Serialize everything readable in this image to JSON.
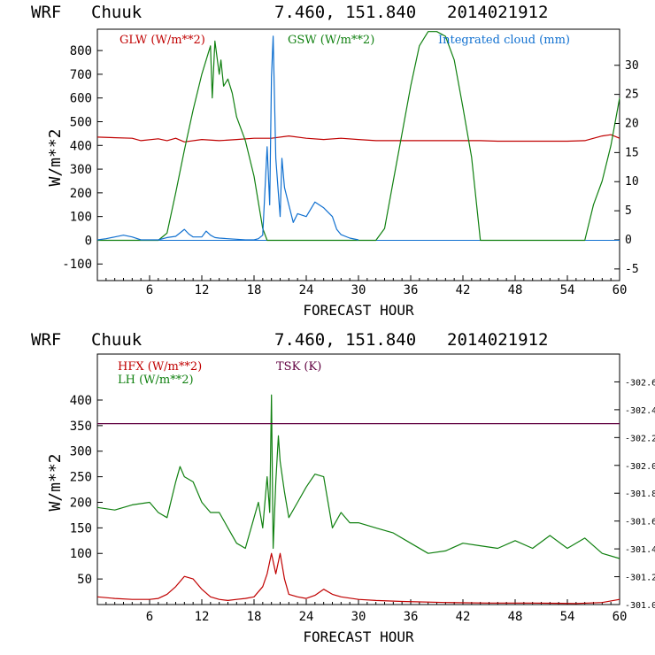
{
  "chart_data": [
    {
      "type": "line",
      "header": {
        "model": "WRF",
        "station": "Chuuk",
        "coords": "7.460, 151.840",
        "run": "2014021912"
      },
      "xlabel": "FORECAST HOUR",
      "ylabel": "W/m**2",
      "xlim": [
        0,
        60
      ],
      "ylim": [
        -170,
        890
      ],
      "xticks": [
        "6",
        "12",
        "18",
        "24",
        "30",
        "36",
        "42",
        "48",
        "54",
        "60"
      ],
      "yticks": [
        "-100",
        "0",
        "100",
        "200",
        "300",
        "400",
        "500",
        "600",
        "700",
        "800"
      ],
      "y2lim": [
        -7,
        36.2
      ],
      "y2ticks": [
        "-5",
        "0",
        "5",
        "10",
        "15",
        "20",
        "25",
        "30"
      ],
      "colors": {
        "glw": "#c00000",
        "gsw": "#108010",
        "cloud": "#1070d0"
      },
      "series": [
        {
          "name": "GLW (W/m**2)",
          "key": "glw",
          "axis": "left",
          "x": [
            0,
            4,
            5,
            7,
            8,
            9,
            10,
            12,
            14,
            16,
            18,
            20,
            22,
            24,
            26,
            28,
            30,
            32,
            34,
            36,
            38,
            40,
            42,
            44,
            46,
            48,
            50,
            52,
            54,
            56,
            58,
            59,
            60
          ],
          "y": [
            435,
            430,
            420,
            428,
            420,
            430,
            415,
            425,
            420,
            425,
            430,
            430,
            440,
            430,
            425,
            430,
            425,
            420,
            420,
            420,
            420,
            420,
            420,
            420,
            418,
            418,
            418,
            418,
            418,
            420,
            440,
            445,
            430
          ]
        },
        {
          "name": "GSW (W/m**2)",
          "key": "gsw",
          "axis": "left",
          "x": [
            0,
            7,
            8,
            9,
            10,
            11,
            12,
            13,
            13.2,
            13.5,
            14,
            14.2,
            14.5,
            15,
            15.5,
            16,
            17,
            18,
            19,
            19.5,
            20,
            32,
            33,
            34,
            35,
            36,
            37,
            38,
            39,
            40,
            41,
            42,
            43,
            44,
            56,
            57,
            58,
            59,
            60
          ],
          "y": [
            0,
            0,
            30,
            200,
            380,
            550,
            700,
            820,
            600,
            840,
            700,
            760,
            650,
            680,
            620,
            520,
            420,
            270,
            50,
            0,
            0,
            0,
            50,
            250,
            450,
            650,
            820,
            880,
            880,
            860,
            760,
            560,
            350,
            0,
            0,
            150,
            250,
            400,
            600
          ]
        },
        {
          "name": "Integrated cloud (mm)",
          "key": "cloud",
          "axis": "right",
          "x": [
            0,
            1,
            2,
            3,
            4,
            5,
            6,
            7,
            8,
            9,
            9.5,
            10,
            10.5,
            11,
            12,
            12.5,
            13,
            13.5,
            14,
            15,
            16,
            17,
            18,
            18.5,
            19,
            19.5,
            19.8,
            20,
            20.2,
            20.5,
            20.8,
            21,
            21.2,
            21.5,
            22,
            22.5,
            23,
            24,
            25,
            26,
            27,
            27.5,
            28,
            29,
            30
          ],
          "y": [
            0,
            0.2,
            0.5,
            0.8,
            0.5,
            0,
            0,
            0,
            0.4,
            0.6,
            1.2,
            1.8,
            1,
            0.5,
            0.5,
            1.5,
            0.8,
            0.4,
            0.3,
            0.2,
            0.1,
            0,
            0,
            0.2,
            0.8,
            16,
            6,
            28,
            35,
            14,
            8,
            4,
            14,
            9,
            6,
            3,
            4.5,
            4,
            6.5,
            5.5,
            4,
            1.8,
            0.9,
            0.3,
            0
          ]
        }
      ]
    },
    {
      "type": "line",
      "header": {
        "model": "WRF",
        "station": "Chuuk",
        "coords": "7.460, 151.840",
        "run": "2014021912"
      },
      "xlabel": "FORECAST HOUR",
      "ylabel": "W/m**2",
      "xlim": [
        0,
        60
      ],
      "ylim": [
        0,
        490
      ],
      "xticks": [
        "6",
        "12",
        "18",
        "24",
        "30",
        "36",
        "42",
        "48",
        "54",
        "60"
      ],
      "yticks": [
        "50",
        "100",
        "150",
        "200",
        "250",
        "300",
        "350",
        "400"
      ],
      "y2lim": [
        301.0,
        302.8
      ],
      "y2ticks": [
        "301.0",
        "301.2",
        "301.4",
        "301.6",
        "301.8",
        "302.0",
        "302.2",
        "302.4",
        "302.6"
      ],
      "colors": {
        "hfx": "#c00000",
        "lh": "#108010",
        "tsk": "#600040"
      },
      "series": [
        {
          "name": "HFX (W/m**2)",
          "key": "hfx",
          "axis": "left",
          "x": [
            0,
            2,
            4,
            6,
            7,
            8,
            9,
            10,
            11,
            12,
            13,
            14,
            15,
            16,
            17,
            18,
            19,
            19.5,
            20,
            20.5,
            21,
            21.5,
            22,
            23,
            24,
            25,
            26,
            27,
            28,
            30,
            32,
            35,
            40,
            45,
            50,
            55,
            58,
            60
          ],
          "y": [
            15,
            12,
            10,
            10,
            12,
            20,
            35,
            55,
            50,
            30,
            15,
            10,
            8,
            10,
            12,
            15,
            35,
            60,
            100,
            60,
            100,
            50,
            20,
            15,
            12,
            18,
            30,
            20,
            15,
            10,
            8,
            6,
            4,
            3,
            3,
            2,
            4,
            10
          ]
        },
        {
          "name": "LH (W/m**2)",
          "key": "lh",
          "axis": "left",
          "x": [
            0,
            2,
            4,
            6,
            7,
            8,
            9,
            9.5,
            10,
            11,
            12,
            13,
            14,
            15,
            16,
            17,
            18,
            18.5,
            19,
            19.5,
            19.8,
            20,
            20.2,
            20.5,
            20.8,
            21,
            21.5,
            22,
            23,
            24,
            25,
            26,
            27,
            28,
            29,
            30,
            32,
            34,
            36,
            38,
            40,
            42,
            44,
            46,
            48,
            50,
            52,
            54,
            56,
            58,
            60
          ],
          "y": [
            190,
            185,
            195,
            200,
            180,
            170,
            240,
            270,
            250,
            240,
            200,
            180,
            180,
            150,
            120,
            110,
            170,
            200,
            150,
            250,
            180,
            410,
            110,
            240,
            330,
            280,
            220,
            170,
            200,
            230,
            255,
            250,
            150,
            180,
            160,
            160,
            150,
            140,
            120,
            100,
            105,
            120,
            115,
            110,
            125,
            110,
            135,
            110,
            130,
            100,
            90
          ]
        },
        {
          "name": "TSK (K)",
          "key": "tsk",
          "axis": "right",
          "x": [
            0,
            60
          ],
          "y": [
            302.3,
            302.3
          ]
        }
      ]
    }
  ]
}
